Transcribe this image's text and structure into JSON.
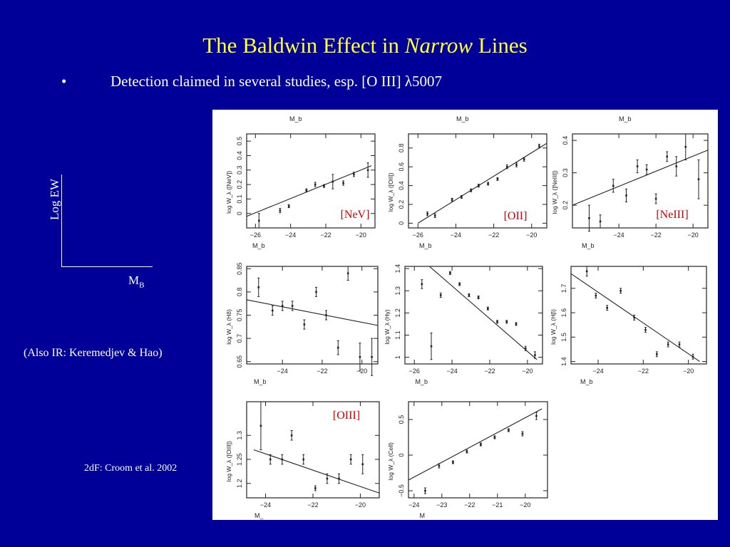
{
  "slide": {
    "title_prefix": "The Baldwin Effect in ",
    "title_em": "Narrow",
    "title_suffix": " Lines",
    "bullet_symbol": "•",
    "bullet_text": "Detection claimed in several studies, esp. [O III] λ5007",
    "sketch_ylabel": "Log EW",
    "sketch_xlabel": "M",
    "sketch_xlabel_sub": "B",
    "note_ir": "(Also IR: Keremedjev & Hao)",
    "note_2df": "2dF: Croom et al. 2002"
  },
  "colors": {
    "background": "#000099",
    "title": "#ffff33",
    "text": "#ffffff",
    "tag": "#cc0000",
    "ink": "#222222"
  },
  "chart_data": [
    {
      "type": "scatter",
      "tag": "[NeV]",
      "ylabel": "log W_λ ([NeV])",
      "xlabel": "M_b",
      "top_label": "M_b",
      "xlim": [
        -26.5,
        -19.2
      ],
      "ylim": [
        -0.1,
        0.55
      ],
      "xticks": [
        -26,
        -24,
        -22,
        -20
      ],
      "yticks": [
        0,
        0.1,
        0.2,
        0.3,
        0.4,
        0.5
      ],
      "x": [
        -25.8,
        -24.6,
        -24.1,
        -23.1,
        -22.6,
        -22.1,
        -21.6,
        -21.0,
        -20.4,
        -19.6
      ],
      "y": [
        -0.05,
        0.02,
        0.05,
        0.16,
        0.2,
        0.19,
        0.22,
        0.21,
        0.27,
        0.3
      ],
      "err": [
        0.05,
        0.015,
        0.01,
        0.01,
        0.015,
        0.01,
        0.05,
        0.015,
        0.015,
        0.05
      ],
      "fit": [
        [
          -26.5,
          -0.02
        ],
        [
          -19.4,
          0.33
        ]
      ]
    },
    {
      "type": "scatter",
      "tag": "[OII]",
      "ylabel": "log W_λ ([OII])",
      "xlabel": "M_b",
      "top_label": "M_b",
      "xlim": [
        -26.5,
        -19.2
      ],
      "ylim": [
        -0.05,
        0.95
      ],
      "xticks": [
        -26,
        -24,
        -22,
        -20
      ],
      "yticks": [
        0,
        0.2,
        0.4,
        0.6,
        0.8
      ],
      "x": [
        -25.5,
        -25.1,
        -24.2,
        -23.7,
        -23.2,
        -22.8,
        -22.3,
        -21.8,
        -21.3,
        -20.8,
        -20.4,
        -19.6
      ],
      "y": [
        0.1,
        0.08,
        0.25,
        0.28,
        0.35,
        0.4,
        0.42,
        0.47,
        0.6,
        0.62,
        0.68,
        0.82
      ],
      "err": [
        0.02,
        0.02,
        0.01,
        0.01,
        0.01,
        0.01,
        0.01,
        0.01,
        0.02,
        0.02,
        0.02,
        0.02
      ],
      "fit": [
        [
          -26.0,
          0.0
        ],
        [
          -19.2,
          0.85
        ]
      ]
    },
    {
      "type": "scatter",
      "tag": "[NeIII]",
      "ylabel": "log W_λ ([NeIII])",
      "xlabel": "M_b",
      "top_label": "M_b",
      "xlim": [
        -26.5,
        -19.2
      ],
      "ylim": [
        0.13,
        0.42
      ],
      "xticks": [
        -24,
        -22,
        -20
      ],
      "yticks": [
        0.2,
        0.3,
        0.4
      ],
      "x": [
        -25.6,
        -25.0,
        -24.3,
        -23.6,
        -23.0,
        -22.5,
        -22.0,
        -21.4,
        -20.9,
        -20.4,
        -19.7
      ],
      "y": [
        0.16,
        0.15,
        0.26,
        0.23,
        0.32,
        0.31,
        0.22,
        0.35,
        0.32,
        0.38,
        0.28
      ],
      "err": [
        0.04,
        0.02,
        0.02,
        0.02,
        0.02,
        0.015,
        0.015,
        0.015,
        0.03,
        0.04,
        0.06
      ],
      "fit": [
        [
          -26.5,
          0.2
        ],
        [
          -19.2,
          0.37
        ]
      ]
    },
    {
      "type": "scatter",
      "tag": "",
      "ylabel": "log W_λ (Hδ)",
      "xlabel": "M_b",
      "top_label": "",
      "xlim": [
        -25.8,
        -19.2
      ],
      "ylim": [
        0.645,
        0.855
      ],
      "xticks": [
        -24,
        -22,
        -20
      ],
      "yticks": [
        0.65,
        0.7,
        0.75,
        0.8,
        0.85
      ],
      "x": [
        -25.2,
        -24.5,
        -24.0,
        -23.5,
        -22.9,
        -22.3,
        -21.8,
        -21.2,
        -20.7,
        -20.1,
        -19.5
      ],
      "y": [
        0.81,
        0.76,
        0.77,
        0.77,
        0.73,
        0.8,
        0.75,
        0.68,
        0.84,
        0.66,
        0.66
      ],
      "err": [
        0.02,
        0.01,
        0.01,
        0.01,
        0.01,
        0.01,
        0.01,
        0.015,
        0.015,
        0.03,
        0.04
      ],
      "fit": [
        [
          -25.8,
          0.783
        ],
        [
          -19.2,
          0.728
        ]
      ]
    },
    {
      "type": "scatter",
      "tag": "",
      "ylabel": "log W_λ (Hγ)",
      "xlabel": "M_b",
      "top_label": "",
      "xlim": [
        -26.5,
        -19.2
      ],
      "ylim": [
        0.97,
        1.41
      ],
      "xticks": [
        -26,
        -24,
        -22,
        -20
      ],
      "yticks": [
        1,
        1.1,
        1.2,
        1.3,
        1.4
      ],
      "x": [
        -25.6,
        -25.1,
        -24.6,
        -24.1,
        -23.6,
        -23.1,
        -22.6,
        -22.1,
        -21.6,
        -21.1,
        -20.6,
        -20.1,
        -19.6
      ],
      "y": [
        1.33,
        1.05,
        1.28,
        1.38,
        1.33,
        1.28,
        1.27,
        1.22,
        1.16,
        1.16,
        1.15,
        1.04,
        1.01
      ],
      "err": [
        0.02,
        0.06,
        0.01,
        0.005,
        0.005,
        0.005,
        0.005,
        0.005,
        0.005,
        0.005,
        0.005,
        0.01,
        0.015
      ],
      "fit": [
        [
          -25.2,
          1.41
        ],
        [
          -19.5,
          0.99
        ]
      ]
    },
    {
      "type": "scatter",
      "tag": "",
      "ylabel": "log W_λ (Hβ)",
      "xlabel": "M_b",
      "top_label": "",
      "xlim": [
        -25.2,
        -19.2
      ],
      "ylim": [
        1.39,
        1.79
      ],
      "xticks": [
        -24,
        -22,
        -20
      ],
      "yticks": [
        1.4,
        1.5,
        1.6,
        1.7
      ],
      "x": [
        -24.5,
        -24.1,
        -23.6,
        -23.0,
        -22.4,
        -21.9,
        -21.4,
        -20.9,
        -20.4,
        -19.8
      ],
      "y": [
        1.77,
        1.67,
        1.62,
        1.69,
        1.58,
        1.53,
        1.43,
        1.47,
        1.47,
        1.42
      ],
      "err": [
        0.02,
        0.01,
        0.01,
        0.01,
        0.01,
        0.01,
        0.01,
        0.01,
        0.01,
        0.01
      ],
      "fit": [
        [
          -25.2,
          1.76
        ],
        [
          -19.5,
          1.4
        ]
      ]
    },
    {
      "type": "scatter",
      "tag": "[OIII]",
      "ylabel": "log W_λ ([OIII])",
      "xlabel": "M_",
      "top_label": "",
      "xlim": [
        -24.8,
        -19.2
      ],
      "ylim": [
        1.17,
        1.37
      ],
      "xticks": [
        -24,
        -22,
        -20
      ],
      "yticks": [
        1.2,
        1.25,
        1.3
      ],
      "x": [
        -24.2,
        -23.8,
        -23.3,
        -22.9,
        -22.4,
        -21.9,
        -21.4,
        -20.9,
        -20.4,
        -19.9
      ],
      "y": [
        1.32,
        1.25,
        1.25,
        1.3,
        1.25,
        1.19,
        1.21,
        1.21,
        1.25,
        1.24
      ],
      "err": [
        0.05,
        0.01,
        0.01,
        0.01,
        0.01,
        0.005,
        0.01,
        0.01,
        0.01,
        0.02
      ],
      "fit": [
        [
          -24.5,
          1.27
        ],
        [
          -19.2,
          1.18
        ]
      ]
    },
    {
      "type": "scatter",
      "tag": "",
      "ylabel": "log W_λ (Cell)",
      "xlabel": "M",
      "top_label": "",
      "xlim": [
        -24.2,
        -19.2
      ],
      "ylim": [
        -0.6,
        0.75
      ],
      "xticks": [
        -24,
        -23,
        -22,
        -21,
        -20
      ],
      "yticks": [
        -0.5,
        0,
        0.5
      ],
      "x": [
        -23.6,
        -23.1,
        -22.6,
        -22.1,
        -21.6,
        -21.1,
        -20.6,
        -20.1,
        -19.6
      ],
      "y": [
        -0.5,
        -0.15,
        -0.1,
        0.05,
        0.15,
        0.25,
        0.35,
        0.3,
        0.55
      ],
      "err": [
        0.04,
        0.03,
        0.02,
        0.02,
        0.015,
        0.015,
        0.02,
        0.03,
        0.05
      ],
      "fit": [
        [
          -24.2,
          -0.35
        ],
        [
          -19.4,
          0.65
        ]
      ]
    }
  ]
}
